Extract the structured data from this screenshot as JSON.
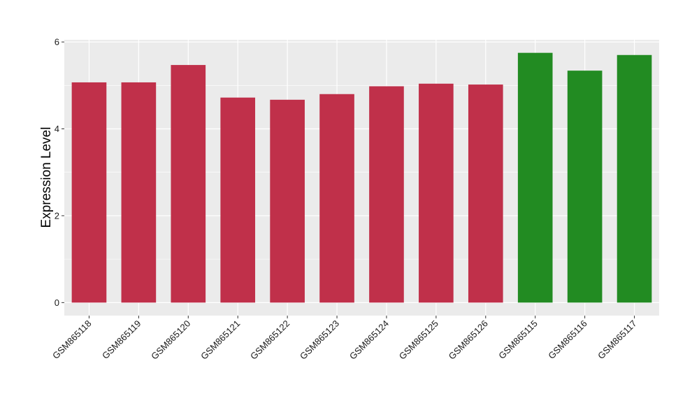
{
  "chart_data": {
    "type": "bar",
    "title": "",
    "xlabel": "",
    "ylabel": "Expression Level",
    "ylim": [
      -0.3,
      6.05
    ],
    "yticks": [
      0,
      2,
      4,
      6
    ],
    "grid": true,
    "categories": [
      "GSM865118",
      "GSM865119",
      "GSM865120",
      "GSM865121",
      "GSM865122",
      "GSM865123",
      "GSM865124",
      "GSM865125",
      "GSM865126",
      "GSM865115",
      "GSM865116",
      "GSM865117"
    ],
    "values": [
      5.07,
      5.07,
      5.47,
      4.72,
      4.67,
      4.8,
      4.98,
      5.04,
      5.02,
      5.75,
      5.34,
      5.7
    ],
    "colors": [
      "#c0304a",
      "#c0304a",
      "#c0304a",
      "#c0304a",
      "#c0304a",
      "#c0304a",
      "#c0304a",
      "#c0304a",
      "#c0304a",
      "#228b22",
      "#228b22",
      "#228b22"
    ],
    "panel_background": "#ebebeb",
    "grid_color": "#ffffff"
  }
}
